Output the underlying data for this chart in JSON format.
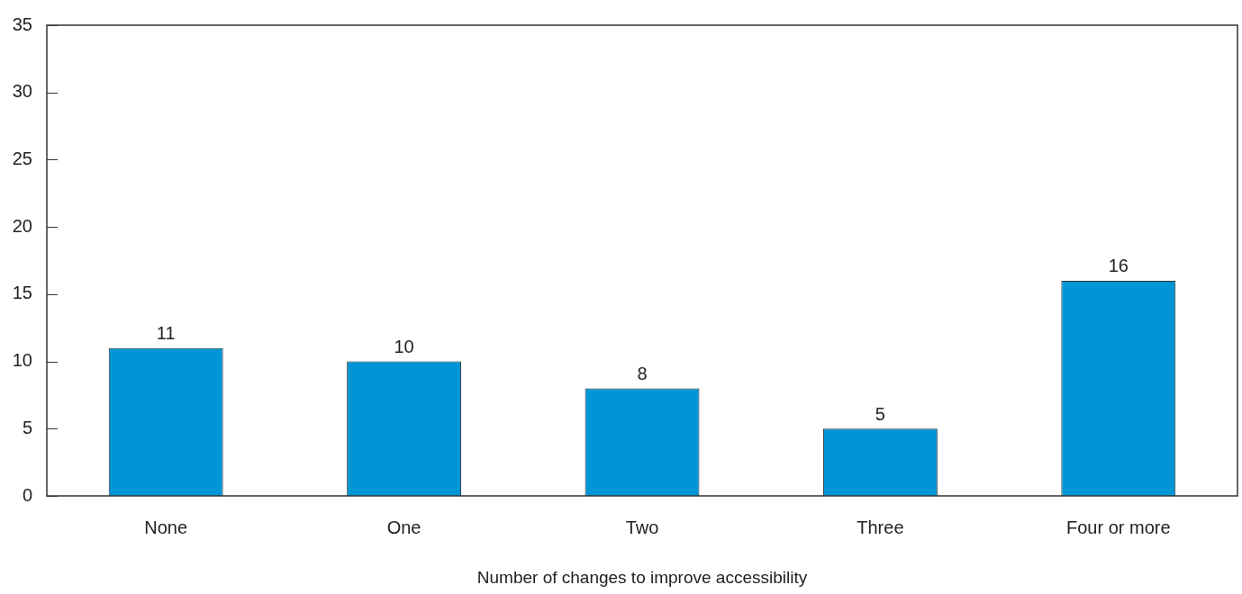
{
  "chart_data": {
    "type": "bar",
    "xlabel": "Number of changes to improve accessibility",
    "categories": [
      "None",
      "One",
      "Two",
      "Three",
      "Four or more"
    ],
    "values": [
      11,
      10,
      8,
      5,
      16
    ],
    "color": "#0096d6",
    "ylim": [
      0,
      35
    ],
    "yticks": [
      0,
      5,
      10,
      15,
      20,
      25,
      30,
      35
    ],
    "data_labels": true
  }
}
